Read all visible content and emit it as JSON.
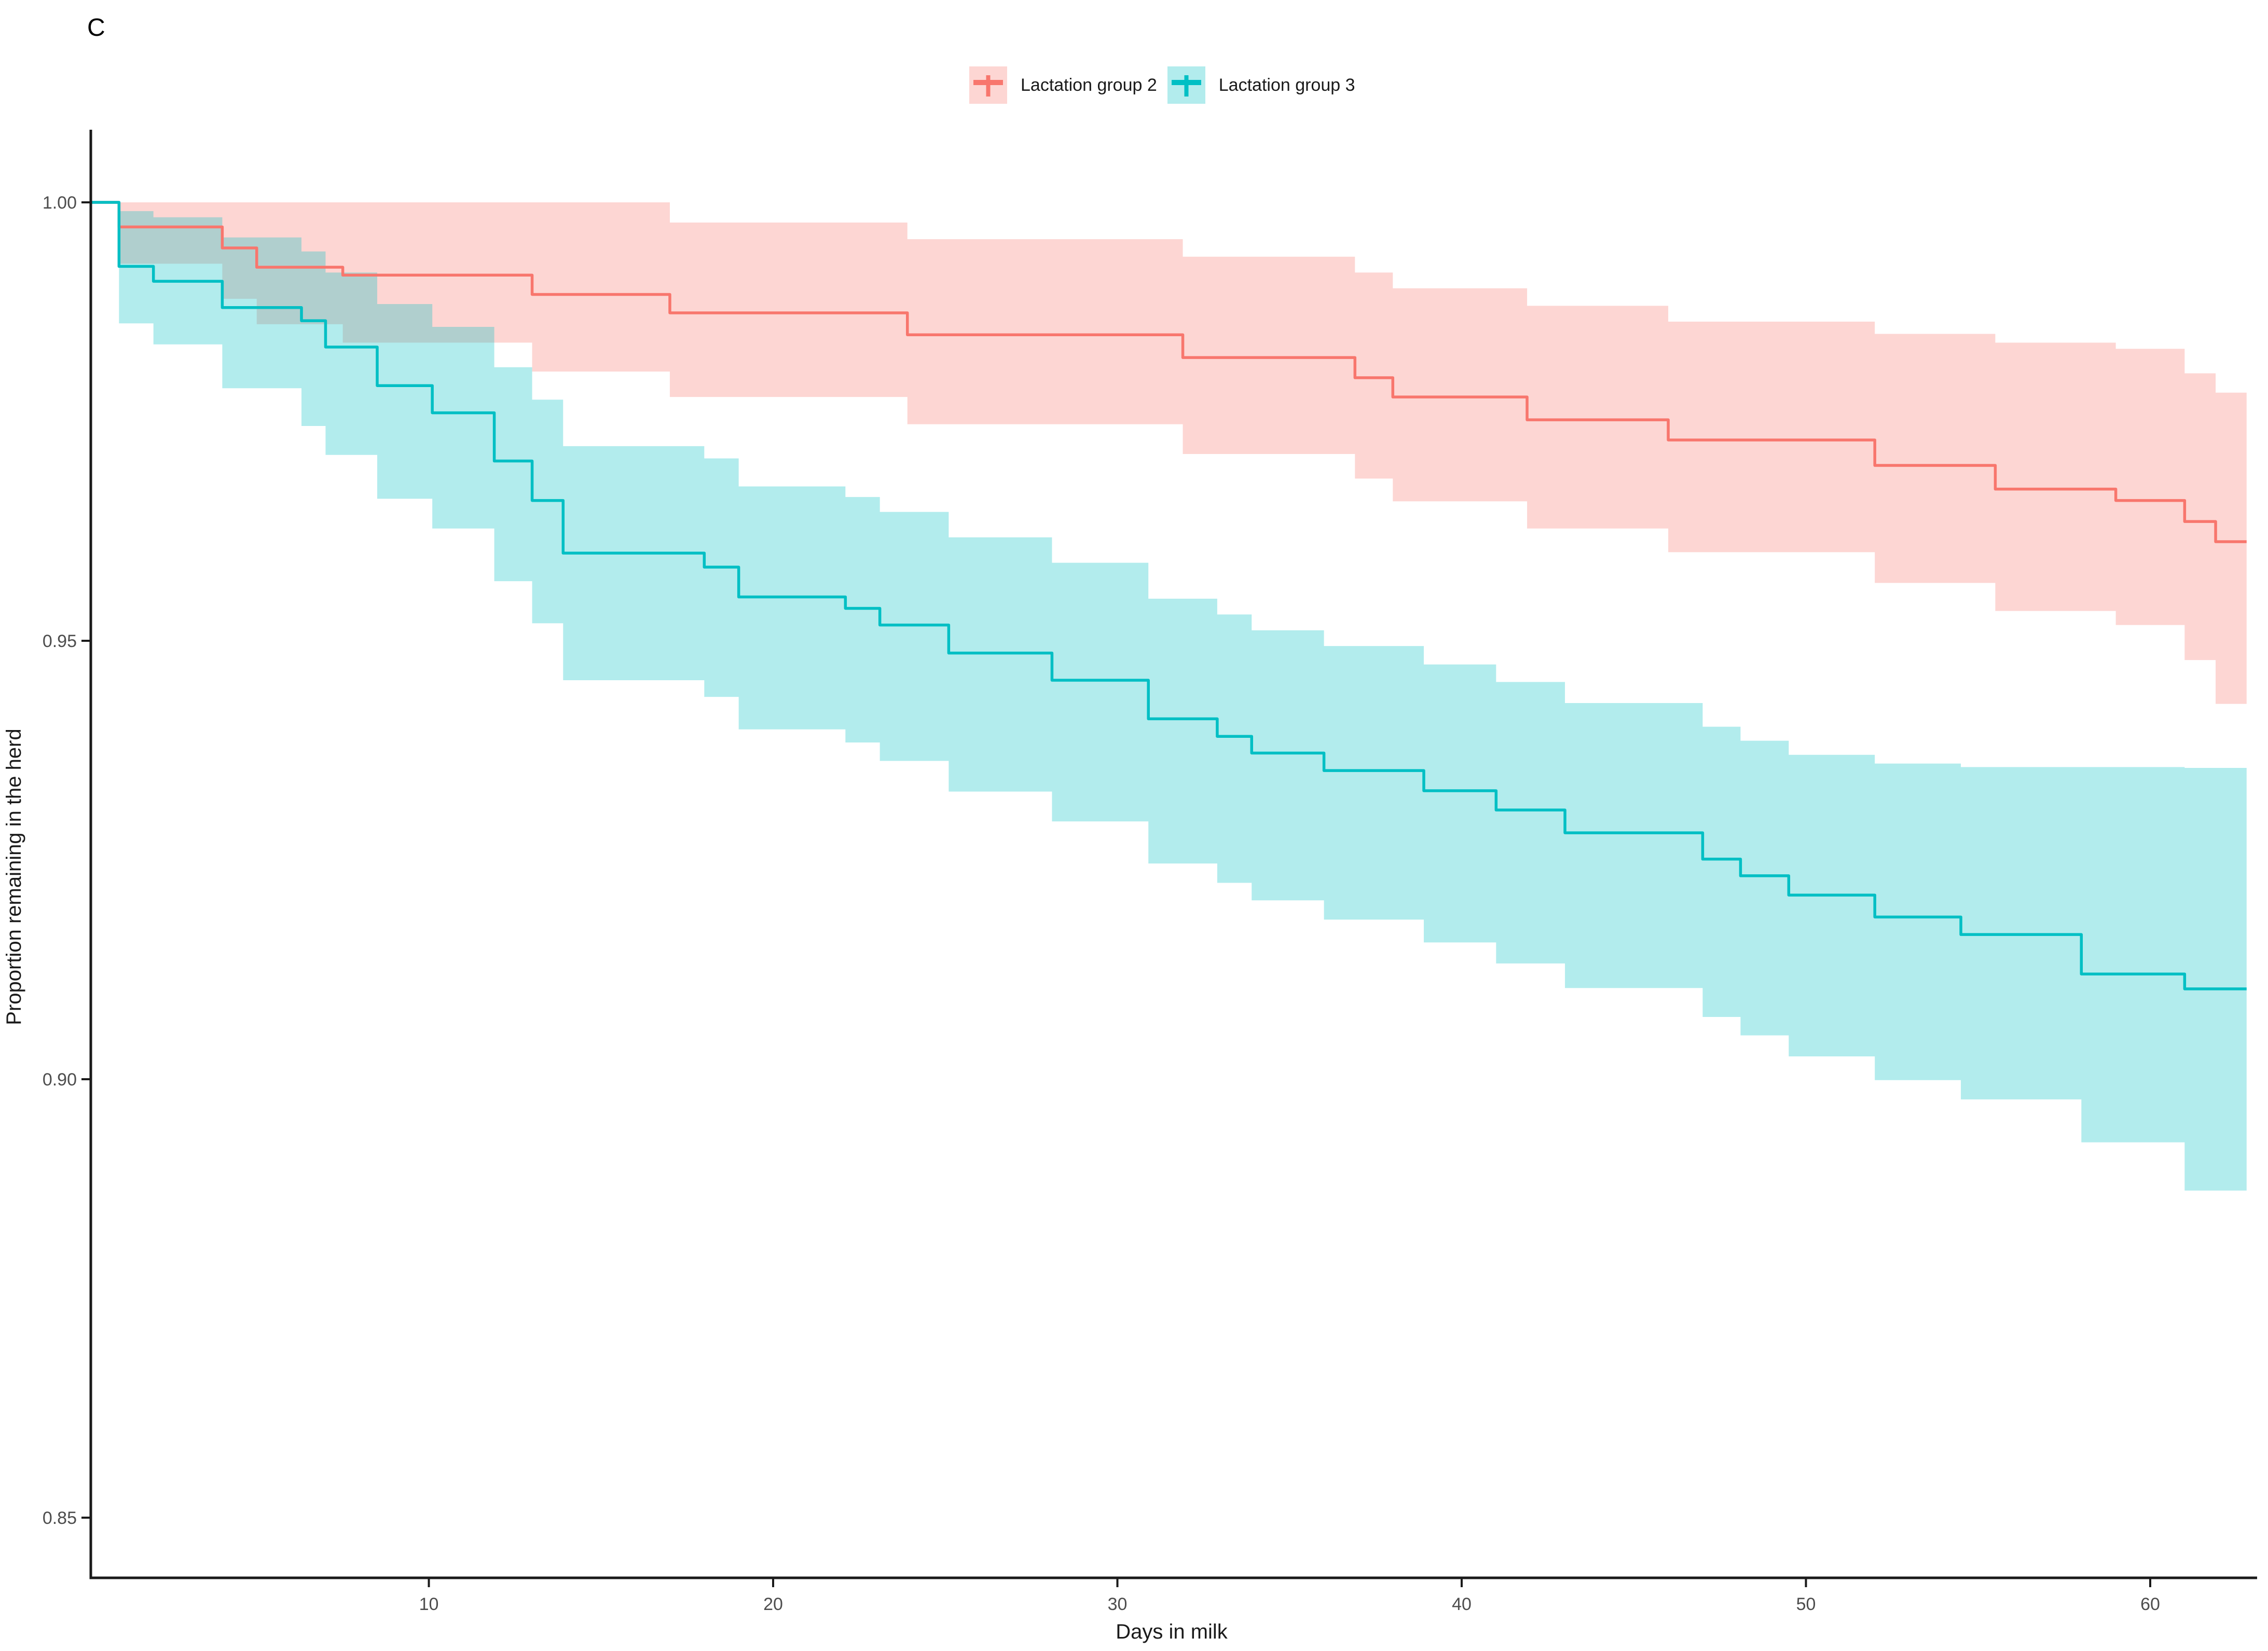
{
  "figure": {
    "panel_label": "C"
  },
  "legend": {
    "position": "top-center",
    "items": [
      {
        "label": "Lactation group 2",
        "marker": "plus-censor-icon",
        "line_color": "#F8766D",
        "key_fill": "rgba(248,118,109,0.30)"
      },
      {
        "label": "Lactation group 3",
        "marker": "plus-censor-icon",
        "line_color": "#00BFC4",
        "key_fill": "rgba(0,191,196,0.30)"
      }
    ]
  },
  "chart_data": {
    "type": "line",
    "subtype": "kaplan-meier-step-with-confidence-bands",
    "title": "",
    "xlabel": "Days in milk",
    "ylabel": "Proportion remaining in the herd",
    "xlim": [
      0,
      63
    ],
    "ylim": [
      0.843,
      1.008
    ],
    "xticks": [
      10,
      20,
      30,
      40,
      50,
      60
    ],
    "xtick_labels": [
      "10",
      "20",
      "30",
      "40",
      "50",
      "60"
    ],
    "yticks": [
      1.0,
      0.95,
      0.9,
      0.85
    ],
    "ytick_labels": [
      "1.00",
      "0.95",
      "0.90",
      "0.85"
    ],
    "grid": false,
    "legend_position": "top",
    "axis_color": "#1a1a1a",
    "tick_label_color": "#4D4D4D",
    "point_format": [
      "day",
      "survival",
      "ci_lower",
      "ci_upper"
    ],
    "t_start": 0.2,
    "t_end": 62.8,
    "series": [
      {
        "name": "Lactation group 2",
        "color": "#F8766D",
        "fill": "rgba(248,118,109,0.30)",
        "points": [
          [
            0.2,
            1.0,
            1.0,
            1.0
          ],
          [
            1.0,
            0.9972,
            0.993,
            1.0
          ],
          [
            4.0,
            0.9948,
            0.989,
            1.0
          ],
          [
            5.0,
            0.9926,
            0.9861,
            1.0
          ],
          [
            7.5,
            0.9917,
            0.984,
            1.0
          ],
          [
            13.0,
            0.9895,
            0.9807,
            1.0
          ],
          [
            17.0,
            0.9874,
            0.9778,
            0.9977
          ],
          [
            23.9,
            0.9849,
            0.9747,
            0.9958
          ],
          [
            31.9,
            0.9823,
            0.9713,
            0.9938
          ],
          [
            36.9,
            0.98,
            0.9685,
            0.992
          ],
          [
            38.0,
            0.9778,
            0.9659,
            0.9902
          ],
          [
            41.9,
            0.9752,
            0.9628,
            0.9882
          ],
          [
            46.0,
            0.9729,
            0.9601,
            0.9864
          ],
          [
            52.0,
            0.97,
            0.9566,
            0.985
          ],
          [
            55.5,
            0.9673,
            0.9534,
            0.984
          ],
          [
            59.0,
            0.966,
            0.9518,
            0.9833
          ],
          [
            61.0,
            0.9636,
            0.9478,
            0.9805
          ],
          [
            61.9,
            0.9613,
            0.9428,
            0.9783
          ]
        ]
      },
      {
        "name": "Lactation group 3",
        "color": "#00BFC4",
        "fill": "rgba(0,191,196,0.30)",
        "points": [
          [
            0.2,
            1.0,
            1.0,
            1.0
          ],
          [
            1.0,
            0.9927,
            0.9862,
            0.999
          ],
          [
            2.0,
            0.991,
            0.9838,
            0.9983
          ],
          [
            4.0,
            0.988,
            0.9788,
            0.996
          ],
          [
            6.3,
            0.9865,
            0.9745,
            0.9944
          ],
          [
            7.0,
            0.9835,
            0.9712,
            0.992
          ],
          [
            8.5,
            0.9791,
            0.9662,
            0.9884
          ],
          [
            10.1,
            0.976,
            0.9628,
            0.9858
          ],
          [
            11.9,
            0.9705,
            0.9568,
            0.9812
          ],
          [
            13.0,
            0.966,
            0.952,
            0.9775
          ],
          [
            13.9,
            0.96,
            0.9455,
            0.9722
          ],
          [
            18.0,
            0.9584,
            0.9436,
            0.9708
          ],
          [
            19.0,
            0.955,
            0.9399,
            0.9676
          ],
          [
            22.1,
            0.9537,
            0.9384,
            0.9664
          ],
          [
            23.1,
            0.9518,
            0.9363,
            0.9647
          ],
          [
            25.1,
            0.9486,
            0.9328,
            0.9618
          ],
          [
            28.1,
            0.9455,
            0.9294,
            0.9589
          ],
          [
            30.9,
            0.9411,
            0.9246,
            0.9548
          ],
          [
            32.9,
            0.9391,
            0.9224,
            0.953
          ],
          [
            33.9,
            0.9372,
            0.9204,
            0.9512
          ],
          [
            36.0,
            0.9352,
            0.9182,
            0.9494
          ],
          [
            38.9,
            0.9329,
            0.9156,
            0.9473
          ],
          [
            41.0,
            0.9307,
            0.9132,
            0.9453
          ],
          [
            43.0,
            0.9281,
            0.9104,
            0.9429
          ],
          [
            47.0,
            0.9251,
            0.9071,
            0.9402
          ],
          [
            48.1,
            0.9232,
            0.905,
            0.9386
          ],
          [
            49.5,
            0.921,
            0.9026,
            0.937
          ],
          [
            52.0,
            0.9185,
            0.8999,
            0.936
          ],
          [
            54.5,
            0.9165,
            0.8977,
            0.9356
          ],
          [
            58.0,
            0.912,
            0.8928,
            0.9356
          ],
          [
            61.0,
            0.9103,
            0.8873,
            0.9355
          ]
        ]
      }
    ]
  }
}
